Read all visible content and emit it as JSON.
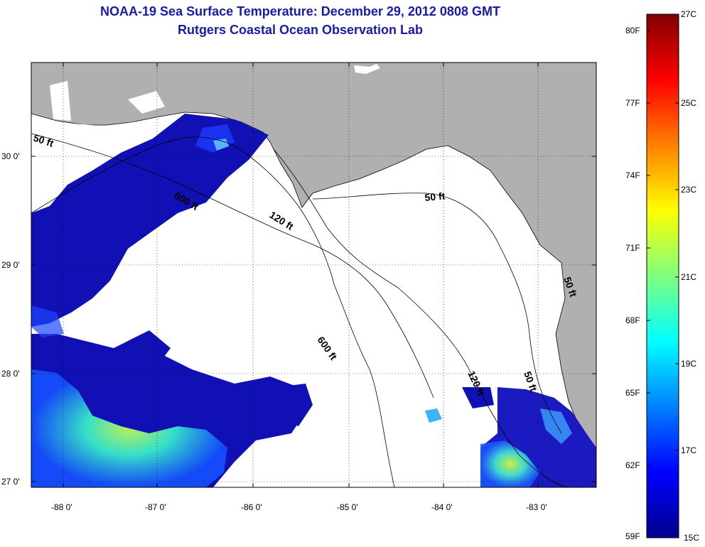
{
  "title": "NOAA-19 Sea Surface Temperature:  December 29, 2012 0808 GMT",
  "subtitle": "Rutgers Coastal Ocean Observation Lab",
  "map": {
    "lon_ticks": [
      "-88 0'",
      "-87 0'",
      "-86 0'",
      "-85 0'",
      "-84 0'",
      "-83 0'"
    ],
    "lat_ticks": [
      "30 0'",
      "29 0'",
      "28 0'",
      "27 0'"
    ],
    "isobath_labels": [
      "50 ft",
      "600 ft",
      "120 ft",
      "50 ft",
      "600 ft",
      "120 ft",
      "50 ft",
      "50 ft"
    ],
    "land_color": "#b0b0b0",
    "cloud_color": "#ffffff"
  },
  "colorbar": {
    "fahrenheit": [
      "80F",
      "77F",
      "74F",
      "71F",
      "68F",
      "65F",
      "62F",
      "59F"
    ],
    "celsius": [
      "27C",
      "25C",
      "23C",
      "21C",
      "19C",
      "17C",
      "15C"
    ],
    "colormap": "jet"
  }
}
